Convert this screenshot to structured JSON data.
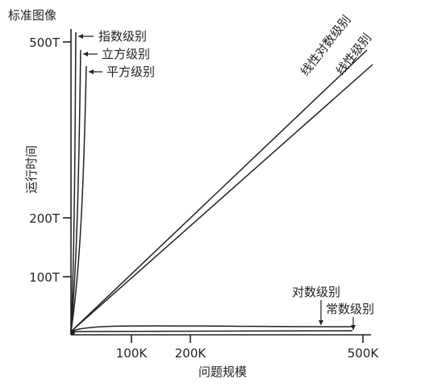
{
  "chart_data": {
    "type": "line",
    "title": "标准图像",
    "xlabel": "问题规模",
    "ylabel": "运行时间",
    "x_ticks": [
      {
        "value": 100,
        "label": "100K"
      },
      {
        "value": 200,
        "label": "200K"
      },
      {
        "value": 500,
        "label": "500K"
      }
    ],
    "y_ticks": [
      {
        "value": 100,
        "label": "100T"
      },
      {
        "value": 200,
        "label": "200T"
      },
      {
        "value": 500,
        "label": "500T"
      }
    ],
    "xlim": [
      0,
      500
    ],
    "ylim": [
      0,
      500
    ],
    "grid": false,
    "series": [
      {
        "name": "指数级别"
      },
      {
        "name": "立方级别"
      },
      {
        "name": "平方级别"
      },
      {
        "name": "线性对数级别"
      },
      {
        "name": "线性级别"
      },
      {
        "name": "对数级别"
      },
      {
        "name": "常数级别"
      }
    ]
  }
}
